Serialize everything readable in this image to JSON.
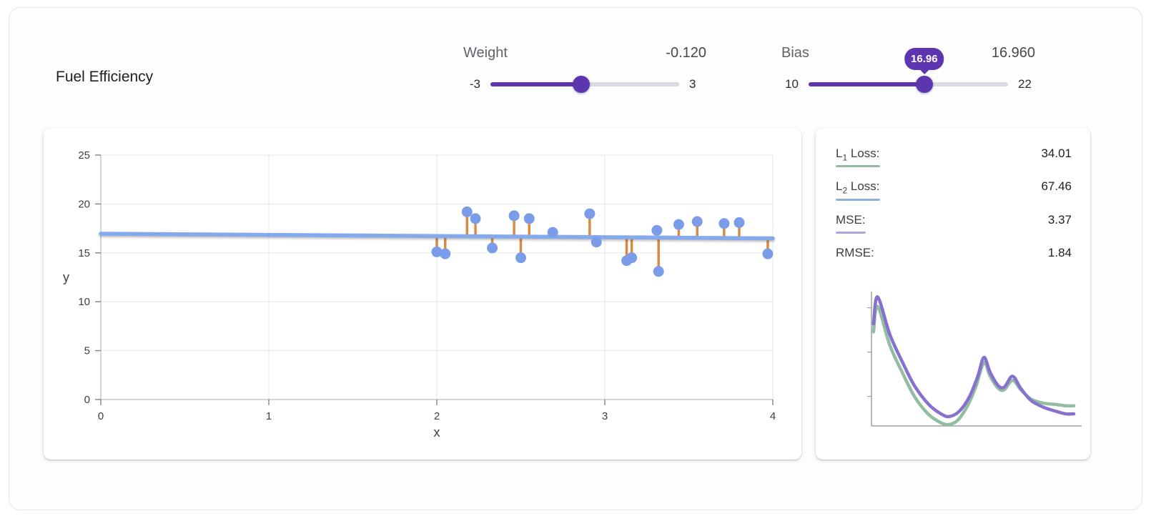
{
  "title": "Fuel Efficiency",
  "controls": {
    "weight": {
      "label": "Weight",
      "value_display": "-0.120",
      "value": -0.12,
      "min": -3,
      "max": 3,
      "min_label": "-3",
      "max_label": "3"
    },
    "bias": {
      "label": "Bias",
      "value_display": "16.960",
      "value": 16.96,
      "min": 10,
      "max": 22,
      "min_label": "10",
      "max_label": "22",
      "tooltip": "16.96"
    }
  },
  "colors": {
    "accent_purple": "#5e35b1",
    "track_gray": "#dcd8e4",
    "point_blue": "#7b9de9",
    "line_blue": "#84aaed",
    "residual_orange": "#d98b43",
    "l1_green": "#94bba1",
    "l2_blue": "#8fb1e0",
    "mse_purple": "#b6a3e2"
  },
  "loss_panel": {
    "rows": [
      {
        "prefix": "L",
        "sub": "1",
        "rest": " Loss:",
        "value": "34.01",
        "underline": "#94bba1"
      },
      {
        "prefix": "L",
        "sub": "2",
        "rest": " Loss:",
        "value": "67.46",
        "underline": "#8fb1e0"
      },
      {
        "prefix": "MSE:",
        "sub": "",
        "rest": "",
        "value": "3.37",
        "underline": "#b6a3e2"
      },
      {
        "prefix": "RMSE:",
        "sub": "",
        "rest": "",
        "value": "1.84",
        "underline": ""
      }
    ]
  },
  "chart_data": [
    {
      "type": "scatter",
      "xlabel": "x",
      "ylabel": "y",
      "xlim": [
        0,
        4
      ],
      "ylim": [
        0,
        25
      ],
      "x_ticks": [
        0,
        1,
        2,
        3,
        4
      ],
      "y_ticks": [
        0,
        5,
        10,
        15,
        20,
        25
      ],
      "grid": true,
      "points": [
        [
          2.0,
          15.1
        ],
        [
          2.05,
          14.9
        ],
        [
          2.18,
          19.2
        ],
        [
          2.23,
          18.5
        ],
        [
          2.33,
          15.5
        ],
        [
          2.46,
          18.8
        ],
        [
          2.5,
          14.5
        ],
        [
          2.55,
          18.5
        ],
        [
          2.69,
          17.1
        ],
        [
          2.91,
          19.0
        ],
        [
          2.95,
          16.1
        ],
        [
          3.13,
          14.2
        ],
        [
          3.16,
          14.5
        ],
        [
          3.31,
          17.3
        ],
        [
          3.32,
          13.1
        ],
        [
          3.44,
          17.9
        ],
        [
          3.55,
          18.2
        ],
        [
          3.71,
          18.0
        ],
        [
          3.8,
          18.1
        ],
        [
          3.97,
          14.9
        ]
      ],
      "model_line": {
        "weight": -0.12,
        "bias": 16.96
      },
      "show_residuals": true,
      "point_color": "#7b9de9",
      "line_color": "#84aaed",
      "residual_color": "#d98b43"
    },
    {
      "type": "line",
      "title": "loss-history",
      "axis_labels_visible": false,
      "series": [
        {
          "name": "L1 Loss",
          "color": "#93bda3",
          "points": [
            [
              1,
              30
            ],
            [
              3,
              11
            ],
            [
              9,
              40
            ],
            [
              15,
              60
            ],
            [
              21,
              78
            ],
            [
              27,
              90
            ],
            [
              32,
              96
            ],
            [
              37,
              99
            ],
            [
              42,
              96
            ],
            [
              47,
              85
            ],
            [
              51,
              71
            ],
            [
              55,
              53
            ],
            [
              58,
              63
            ],
            [
              62,
              72
            ],
            [
              65,
              73
            ],
            [
              69,
              66
            ],
            [
              73,
              73
            ],
            [
              78,
              80
            ],
            [
              84,
              83
            ],
            [
              90,
              84
            ],
            [
              95,
              85
            ],
            [
              99,
              85
            ]
          ]
        },
        {
          "name": "MSE",
          "color": "#8672ce",
          "points": [
            [
              1,
              24
            ],
            [
              3,
              4
            ],
            [
              9,
              32
            ],
            [
              15,
              52
            ],
            [
              21,
              70
            ],
            [
              28,
              84
            ],
            [
              34,
              91
            ],
            [
              38,
              93
            ],
            [
              43,
              89
            ],
            [
              48,
              78
            ],
            [
              52,
              63
            ],
            [
              55,
              49
            ],
            [
              58,
              60
            ],
            [
              62,
              70
            ],
            [
              65,
              71
            ],
            [
              69,
              63
            ],
            [
              73,
              72
            ],
            [
              78,
              81
            ],
            [
              84,
              86
            ],
            [
              90,
              89
            ],
            [
              95,
              91
            ],
            [
              99,
              91
            ]
          ]
        }
      ]
    }
  ]
}
